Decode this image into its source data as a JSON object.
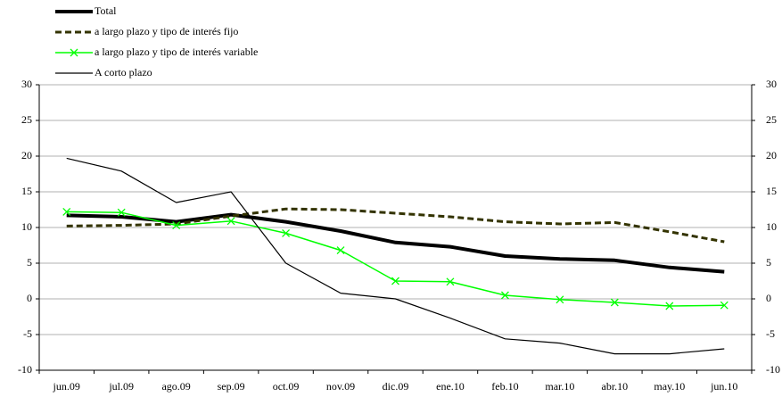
{
  "chart_data": {
    "type": "line",
    "categories": [
      "jun.09",
      "jul.09",
      "ago.09",
      "sep.09",
      "oct.09",
      "nov.09",
      "dic.09",
      "ene.10",
      "feb.10",
      "mar.10",
      "abr.10",
      "may.10",
      "jun.10"
    ],
    "series": [
      {
        "name": "Total",
        "color": "#000000",
        "width": 4,
        "dash": "none",
        "marker": "none",
        "values": [
          11.7,
          11.5,
          10.8,
          11.8,
          10.8,
          9.5,
          7.9,
          7.3,
          6.0,
          5.6,
          5.4,
          4.4,
          3.8
        ]
      },
      {
        "name": "a largo plazo y tipo de interés fijo",
        "color": "#333300",
        "width": 3,
        "dash": "7,4",
        "marker": "none",
        "values": [
          10.2,
          10.3,
          10.5,
          11.6,
          12.6,
          12.5,
          12.0,
          11.5,
          10.8,
          10.5,
          10.7,
          9.4,
          8.0
        ]
      },
      {
        "name": "a largo plazo y tipo de interés variable",
        "color": "#00ff00",
        "width": 1.5,
        "dash": "none",
        "marker": "x",
        "values": [
          12.2,
          12.1,
          10.3,
          10.9,
          9.2,
          6.8,
          2.5,
          2.4,
          0.5,
          -0.1,
          -0.5,
          -1.0,
          -0.9
        ]
      },
      {
        "name": "A corto plazo",
        "color": "#000000",
        "width": 1.2,
        "dash": "none",
        "marker": "none",
        "values": [
          19.7,
          17.9,
          13.5,
          15.0,
          5.0,
          0.8,
          0.0,
          -2.7,
          -5.6,
          -6.2,
          -7.7,
          -7.7,
          -7.0
        ]
      }
    ],
    "ylim": [
      -10,
      30
    ],
    "yticks": [
      -10,
      -5,
      0,
      5,
      10,
      15,
      20,
      25,
      30
    ],
    "y2lim": [
      -10,
      30
    ],
    "y2ticks": [
      -10,
      -5,
      0,
      5,
      10,
      15,
      20,
      25,
      30
    ],
    "grid": true
  }
}
